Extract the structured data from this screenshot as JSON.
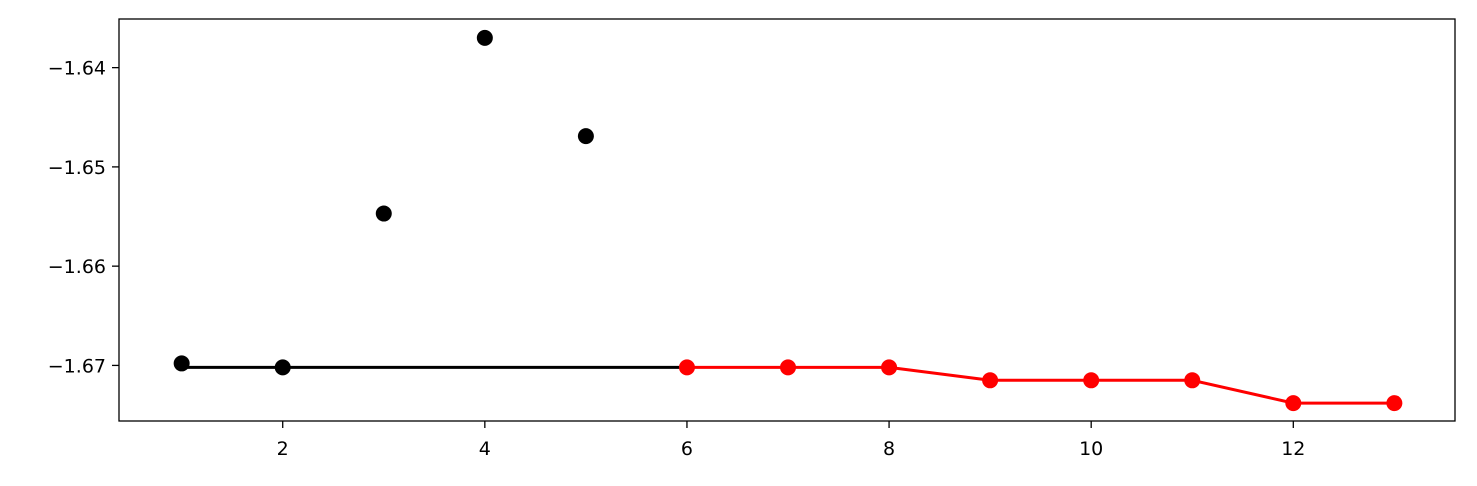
{
  "chart_data": {
    "type": "line",
    "title": "",
    "xlabel": "",
    "ylabel": "",
    "xlim": [
      0.38,
      13.6
    ],
    "ylim": [
      -1.6756,
      -1.6351
    ],
    "xticks": [
      2,
      4,
      6,
      8,
      10,
      12
    ],
    "yticks": [
      -1.64,
      -1.65,
      -1.66,
      -1.67
    ],
    "xtick_labels": [
      "2",
      "4",
      "6",
      "8",
      "10",
      "12"
    ],
    "ytick_labels": [
      "−1.64",
      "−1.65",
      "−1.66",
      "−1.67"
    ],
    "grid": false,
    "legend": "none",
    "series": [
      {
        "kind": "scatter",
        "color": "#000000",
        "points": [
          {
            "x": 1,
            "y": -1.6698
          },
          {
            "x": 2,
            "y": -1.6702
          },
          {
            "x": 3,
            "y": -1.6547
          },
          {
            "x": 4,
            "y": -1.637
          },
          {
            "x": 5,
            "y": -1.6469
          }
        ]
      },
      {
        "kind": "line",
        "color": "#000000",
        "points": [
          {
            "x": 1,
            "y": -1.6702
          },
          {
            "x": 6,
            "y": -1.6702
          }
        ]
      },
      {
        "kind": "line-markers",
        "color": "#ff0000",
        "points": [
          {
            "x": 6,
            "y": -1.6702
          },
          {
            "x": 7,
            "y": -1.6702
          },
          {
            "x": 8,
            "y": -1.6702
          },
          {
            "x": 9,
            "y": -1.6715
          },
          {
            "x": 10,
            "y": -1.6715
          },
          {
            "x": 11,
            "y": -1.6715
          },
          {
            "x": 12,
            "y": -1.6738
          },
          {
            "x": 13,
            "y": -1.6738
          }
        ]
      }
    ]
  }
}
